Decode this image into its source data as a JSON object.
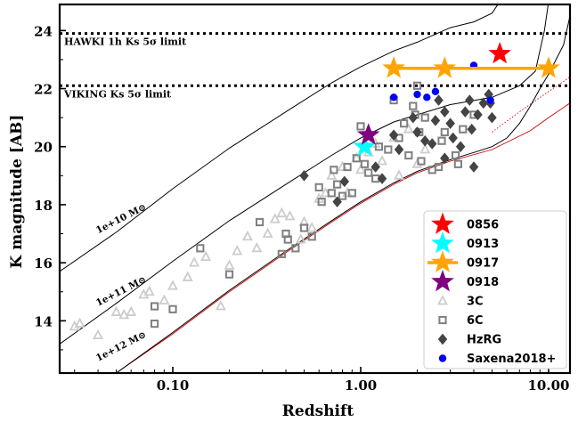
{
  "chart_data": {
    "type": "scatter",
    "xlabel": "Redshift",
    "ylabel": "K magnitude [AB]",
    "xscale": "log",
    "xlim": [
      0.025,
      13
    ],
    "ylim": [
      12.2,
      24.9
    ],
    "y_inverted": false,
    "x_tick_labels": [
      {
        "value": 0.1,
        "label": "0.10"
      },
      {
        "value": 1.0,
        "label": "1.00"
      },
      {
        "value": 10.0,
        "label": "10.00"
      }
    ],
    "y_ticks": [
      14,
      16,
      18,
      20,
      22,
      24
    ],
    "limits": [
      {
        "label": "HAWKI 1h Ks 5σ limit",
        "y": 23.9
      },
      {
        "label": "VIKING Ks 5σ limit",
        "y": 22.1
      }
    ],
    "mass_tracks": [
      {
        "label": "1e+10 M⊙",
        "points": [
          [
            0.025,
            15.7
          ],
          [
            0.05,
            17.05
          ],
          [
            0.1,
            18.55
          ],
          [
            0.2,
            19.95
          ],
          [
            0.4,
            21.2
          ],
          [
            0.7,
            22.2
          ],
          [
            1.0,
            22.75
          ],
          [
            1.5,
            23.3
          ],
          [
            2.0,
            23.6
          ],
          [
            3.0,
            24.1
          ],
          [
            4.0,
            24.3
          ],
          [
            5.0,
            24.6
          ],
          [
            5.5,
            25.0
          ]
        ]
      },
      {
        "label": "1e+11 M⊙",
        "points": [
          [
            0.025,
            13.2
          ],
          [
            0.05,
            14.6
          ],
          [
            0.1,
            16.05
          ],
          [
            0.2,
            17.45
          ],
          [
            0.4,
            18.7
          ],
          [
            0.7,
            19.7
          ],
          [
            1.0,
            20.3
          ],
          [
            1.5,
            20.85
          ],
          [
            2.0,
            21.1
          ],
          [
            3.0,
            21.45
          ],
          [
            5.0,
            21.7
          ],
          [
            7.0,
            22.1
          ],
          [
            8.5,
            22.6
          ],
          [
            9.5,
            24.0
          ],
          [
            10.0,
            25.0
          ]
        ]
      },
      {
        "label": "1e+12 M⊙",
        "points": [
          [
            0.05,
            12.2
          ],
          [
            0.1,
            13.6
          ],
          [
            0.2,
            15.05
          ],
          [
            0.4,
            16.4
          ],
          [
            0.7,
            17.45
          ],
          [
            1.0,
            18.1
          ],
          [
            1.5,
            18.75
          ],
          [
            2.0,
            19.15
          ],
          [
            3.0,
            19.55
          ],
          [
            4.0,
            19.8
          ],
          [
            5.0,
            20.0
          ],
          [
            6.0,
            20.3
          ],
          [
            7.0,
            20.8
          ],
          [
            8.0,
            21.4
          ],
          [
            9.0,
            22.0
          ],
          [
            10.0,
            22.5
          ],
          [
            12.0,
            23.5
          ],
          [
            13.0,
            24.5
          ]
        ]
      }
    ],
    "red_tracks": [
      [
        [
          0.05,
          12.2
        ],
        [
          0.1,
          13.55
        ],
        [
          0.2,
          15.0
        ],
        [
          0.4,
          16.35
        ],
        [
          0.7,
          17.4
        ],
        [
          1.0,
          18.05
        ],
        [
          1.5,
          18.7
        ],
        [
          2.0,
          19.1
        ],
        [
          3.0,
          19.5
        ],
        [
          5.0,
          19.9
        ],
        [
          8.0,
          20.55
        ],
        [
          10.0,
          21.0
        ],
        [
          13.0,
          21.5
        ]
      ],
      [
        [
          5.0,
          20.5
        ],
        [
          7.0,
          21.2
        ],
        [
          10.0,
          21.9
        ],
        [
          13.0,
          22.4
        ]
      ]
    ],
    "series": [
      {
        "name": "0856",
        "marker": "star",
        "color": "#ff0000",
        "points": [
          [
            5.5,
            23.2
          ]
        ]
      },
      {
        "name": "0913",
        "marker": "star",
        "color": "#00ffff",
        "points": [
          [
            1.05,
            20.0
          ]
        ]
      },
      {
        "name": "0917",
        "marker": "star-line",
        "color": "#ffa500",
        "points": [
          [
            1.5,
            22.7
          ],
          [
            2.8,
            22.7
          ],
          [
            10.0,
            22.7
          ]
        ]
      },
      {
        "name": "0918",
        "marker": "star",
        "color": "#800080",
        "points": [
          [
            1.1,
            20.4
          ]
        ]
      },
      {
        "name": "3C",
        "marker": "triangle",
        "color": "#cccccc",
        "points": [
          [
            0.03,
            13.8
          ],
          [
            0.032,
            13.9
          ],
          [
            0.04,
            13.5
          ],
          [
            0.05,
            14.3
          ],
          [
            0.055,
            14.2
          ],
          [
            0.06,
            14.3
          ],
          [
            0.07,
            14.9
          ],
          [
            0.075,
            15.0
          ],
          [
            0.09,
            14.7
          ],
          [
            0.1,
            15.2
          ],
          [
            0.12,
            15.5
          ],
          [
            0.13,
            16.0
          ],
          [
            0.15,
            16.2
          ],
          [
            0.18,
            14.5
          ],
          [
            0.2,
            15.9
          ],
          [
            0.22,
            16.4
          ],
          [
            0.25,
            16.9
          ],
          [
            0.28,
            16.5
          ],
          [
            0.32,
            17.0
          ],
          [
            0.35,
            17.5
          ],
          [
            0.38,
            17.7
          ],
          [
            0.42,
            17.6
          ],
          [
            0.48,
            16.8
          ],
          [
            0.5,
            17.4
          ],
          [
            0.55,
            17.2
          ],
          [
            0.6,
            18.2
          ],
          [
            0.65,
            18.4
          ],
          [
            0.7,
            19.0
          ],
          [
            0.8,
            19.3
          ],
          [
            0.85,
            18.4
          ],
          [
            0.95,
            19.6
          ],
          [
            1.0,
            19.2
          ],
          [
            1.1,
            19.8
          ],
          [
            1.2,
            20.1
          ],
          [
            1.3,
            19.5
          ],
          [
            1.5,
            20.3
          ],
          [
            1.6,
            19.0
          ],
          [
            1.8,
            20.6
          ],
          [
            2.0,
            19.4
          ],
          [
            2.2,
            19.9
          ]
        ]
      },
      {
        "name": "6C",
        "marker": "square",
        "color": "#808080",
        "points": [
          [
            0.08,
            13.9
          ],
          [
            0.08,
            14.5
          ],
          [
            0.1,
            14.4
          ],
          [
            0.14,
            16.5
          ],
          [
            0.2,
            15.6
          ],
          [
            0.29,
            17.4
          ],
          [
            0.38,
            16.3
          ],
          [
            0.4,
            17.0
          ],
          [
            0.41,
            16.8
          ],
          [
            0.45,
            16.5
          ],
          [
            0.5,
            17.2
          ],
          [
            0.55,
            16.9
          ],
          [
            0.6,
            18.6
          ],
          [
            0.62,
            18.1
          ],
          [
            0.7,
            18.4
          ],
          [
            0.72,
            19.2
          ],
          [
            0.75,
            18.7
          ],
          [
            0.8,
            18.3
          ],
          [
            0.85,
            19.3
          ],
          [
            0.9,
            18.4
          ],
          [
            0.95,
            19.6
          ],
          [
            1.0,
            20.7
          ],
          [
            1.05,
            19.4
          ],
          [
            1.1,
            19.1
          ],
          [
            1.2,
            18.9
          ],
          [
            1.25,
            20.0
          ],
          [
            1.4,
            19.9
          ],
          [
            1.5,
            21.6
          ],
          [
            1.6,
            20.3
          ],
          [
            1.7,
            20.8
          ],
          [
            1.8,
            19.7
          ],
          [
            1.9,
            21.4
          ],
          [
            1.95,
            21.1
          ],
          [
            2.0,
            22.1
          ],
          [
            2.05,
            20.5
          ],
          [
            2.1,
            19.5
          ],
          [
            2.2,
            21.0
          ],
          [
            2.4,
            19.2
          ],
          [
            2.6,
            19.3
          ],
          [
            2.7,
            20.2
          ],
          [
            2.8,
            20.5
          ],
          [
            3.2,
            19.7
          ],
          [
            3.3,
            19.4
          ],
          [
            3.5,
            20.6
          ],
          [
            4.0,
            21.1
          ]
        ]
      },
      {
        "name": "HzRG",
        "marker": "diamond",
        "color": "#444444",
        "points": [
          [
            0.5,
            19.0
          ],
          [
            0.75,
            18.1
          ],
          [
            0.82,
            18.8
          ],
          [
            1.2,
            19.3
          ],
          [
            1.3,
            18.9
          ],
          [
            1.5,
            20.4
          ],
          [
            1.6,
            19.9
          ],
          [
            1.9,
            21.0
          ],
          [
            2.0,
            20.5
          ],
          [
            2.2,
            20.2
          ],
          [
            2.4,
            20.1
          ],
          [
            2.5,
            20.9
          ],
          [
            2.6,
            21.6
          ],
          [
            2.8,
            21.2
          ],
          [
            2.8,
            19.6
          ],
          [
            3.0,
            20.8
          ],
          [
            3.1,
            20.3
          ],
          [
            3.4,
            20.0
          ],
          [
            3.6,
            21.2
          ],
          [
            3.8,
            21.6
          ],
          [
            3.9,
            20.6
          ],
          [
            4.0,
            19.3
          ],
          [
            4.2,
            21.1
          ],
          [
            4.5,
            21.5
          ],
          [
            4.8,
            21.8
          ],
          [
            4.9,
            21.5
          ],
          [
            5.0,
            21.0
          ]
        ]
      },
      {
        "name": "Saxena2018+",
        "marker": "circle",
        "color": "#0000ff",
        "points": [
          [
            1.5,
            21.7
          ],
          [
            2.0,
            21.8
          ],
          [
            2.25,
            21.7
          ],
          [
            2.5,
            21.9
          ],
          [
            4.0,
            22.8
          ],
          [
            4.9,
            21.6
          ]
        ]
      }
    ]
  }
}
